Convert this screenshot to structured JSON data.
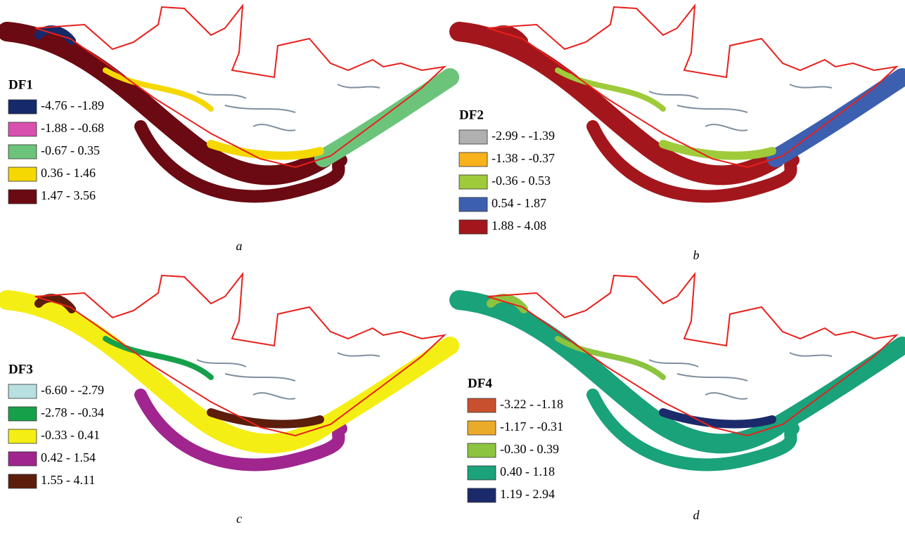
{
  "panels": [
    {
      "title": "DF1",
      "caption": "a",
      "legend": [
        {
          "label": "-4.76 - -1.89",
          "color": "#15296b"
        },
        {
          "label": "-1.88 - -0.68",
          "color": "#d94fb0"
        },
        {
          "label": "-0.67 - 0.35",
          "color": "#6cc47a"
        },
        {
          "label": "0.36 - 1.46",
          "color": "#f5d800"
        },
        {
          "label": "1.47 - 3.56",
          "color": "#6b0a12"
        }
      ]
    },
    {
      "title": "DF2",
      "caption": "b",
      "legend": [
        {
          "label": "-2.99 - -1.39",
          "color": "#b0b0b0"
        },
        {
          "label": "-1.38 - -0.37",
          "color": "#f7b21c"
        },
        {
          "label": "-0.36 - 0.53",
          "color": "#9fcb3a"
        },
        {
          "label": "0.54 - 1.87",
          "color": "#3d5fb0"
        },
        {
          "label": "1.88 - 4.08",
          "color": "#a3171c"
        }
      ]
    },
    {
      "title": "DF3",
      "caption": "c",
      "legend": [
        {
          "label": "-6.60 - -2.79",
          "color": "#b8e0e0"
        },
        {
          "label": "-2.78 - -0.34",
          "color": "#16a04a"
        },
        {
          "label": "-0.33 - 0.41",
          "color": "#f5ee14"
        },
        {
          "label": "0.42 - 1.54",
          "color": "#a0258f"
        },
        {
          "label": "1.55 - 4.11",
          "color": "#5c1d0c"
        }
      ]
    },
    {
      "title": "DF4",
      "caption": "d",
      "legend": [
        {
          "label": "-3.22 - -1.18",
          "color": "#c9502e"
        },
        {
          "label": "-1.17 - -0.31",
          "color": "#eaaa2a"
        },
        {
          "label": "-0.30 - 0.39",
          "color": "#8cc43f"
        },
        {
          "label": "0.40 - 1.18",
          "color": "#1aa27a"
        },
        {
          "label": "1.19 - 2.94",
          "color": "#1b2a6b"
        }
      ]
    }
  ]
}
